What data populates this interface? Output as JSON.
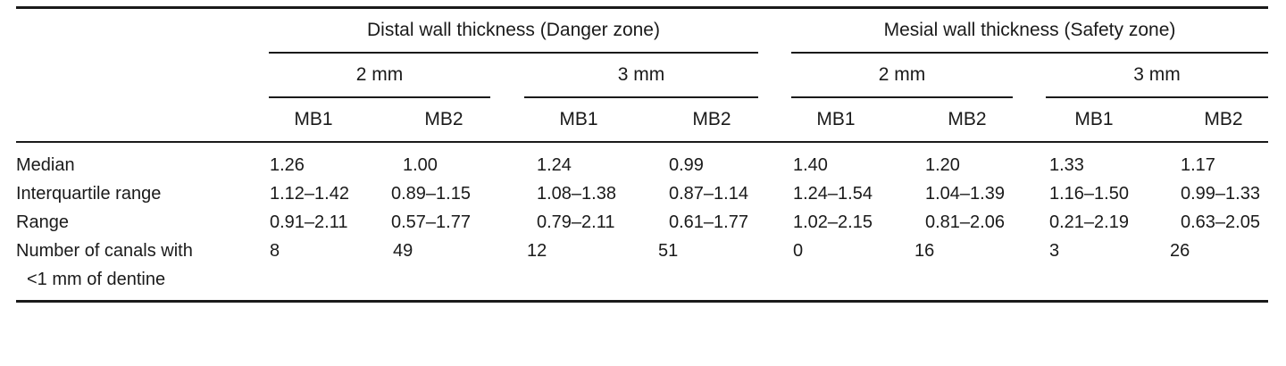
{
  "table": {
    "group_headers": [
      {
        "label": "Distal wall thickness (Danger zone)"
      },
      {
        "label": "Mesial wall thickness (Safety zone)"
      }
    ],
    "sub_headers": [
      "2 mm",
      "3 mm",
      "2 mm",
      "3 mm"
    ],
    "columns": [
      "MB1",
      "MB2",
      "MB1",
      "MB2",
      "MB1",
      "MB2",
      "MB1",
      "MB2"
    ],
    "rows": [
      {
        "label": "Median",
        "values": [
          "1.26",
          "1.00",
          "1.24",
          "0.99",
          "1.40",
          "1.20",
          "1.33",
          "1.17"
        ]
      },
      {
        "label": "Interquartile range",
        "values": [
          "1.12–1.42",
          "0.89–1.15",
          "1.08–1.38",
          "0.87–1.14",
          "1.24–1.54",
          "1.04–1.39",
          "1.16–1.50",
          "0.99–1.33"
        ]
      },
      {
        "label": "Range",
        "values": [
          "0.91–2.11",
          "0.57–1.77",
          "0.79–2.11",
          "0.61–1.77",
          "1.02–2.15",
          "0.81–2.06",
          "0.21–2.19",
          "0.63–2.05"
        ]
      },
      {
        "label": "Number of canals with",
        "label_line2": "<1 mm of dentine",
        "values": [
          "8",
          "49",
          "12",
          "51",
          "0",
          "16",
          "3",
          "26"
        ]
      }
    ]
  }
}
